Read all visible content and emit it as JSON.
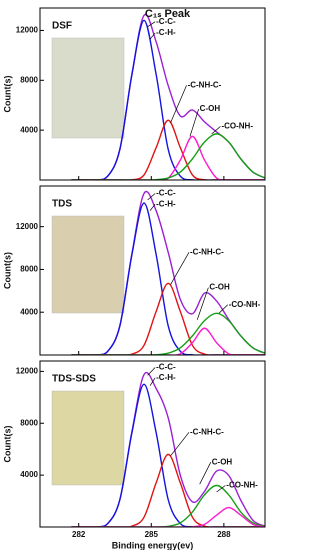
{
  "chart_data": [
    {
      "type": "line",
      "title": "C₁ₛ Peak",
      "label": "DSF",
      "image_color": "#d9dccb",
      "ylabel": "Count(s)",
      "x": [
        281.7,
        282.2,
        282.7,
        283.2,
        283.7,
        284.2,
        284.7,
        285.2,
        285.7,
        286.2,
        286.7,
        287.2,
        287.7,
        288.2,
        288.7,
        289.2,
        289.7
      ],
      "series": [
        {
          "color": "#9b1fd6",
          "values": [
            0,
            0,
            17,
            311,
            2450,
            8489,
            13207,
            11088,
            7567,
            5138,
            5619,
            4664,
            3854,
            3045,
            1695,
            637,
            163
          ]
        },
        {
          "color": "#1414e0",
          "values": [
            0,
            0,
            17,
            311,
            2450,
            8470,
            12800,
            8470,
            2450,
            311,
            17,
            0,
            0,
            0,
            0,
            0,
            0
          ]
        },
        {
          "color": "#e01414",
          "values": [
            0,
            0,
            0,
            0,
            0,
            19,
            407,
            2590,
            4800,
            2590,
            407,
            19,
            0,
            0,
            0,
            0,
            0
          ]
        },
        {
          "color": "#ff1ad0",
          "values": [
            0,
            0,
            0,
            0,
            0,
            0,
            0,
            0,
            154,
            1600,
            3500,
            1600,
            154,
            0,
            0,
            0,
            0
          ]
        },
        {
          "color": "#16a016",
          "values": [
            0,
            0,
            0,
            0,
            0,
            0,
            0,
            28,
            163,
            637,
            1695,
            3045,
            3700,
            3045,
            1695,
            637,
            163
          ]
        }
      ],
      "annotations": [
        "-C-C-",
        "-C-H-",
        "-C-NH-C-",
        "C-OH",
        "-CO-NH-"
      ],
      "xlim": [
        280.4,
        289.7
      ],
      "xticks": [
        282,
        285,
        288
      ],
      "ylim": [
        0,
        13800
      ],
      "yticks": [
        4000,
        8000,
        12000
      ]
    },
    {
      "type": "line",
      "label": "TDS",
      "image_color": "#d9cfae",
      "ylabel": "Count(s)",
      "x": [
        281.7,
        282.2,
        282.7,
        283.2,
        283.7,
        284.2,
        284.7,
        285.2,
        285.7,
        286.2,
        286.7,
        287.2,
        287.7,
        288.2,
        288.7,
        289.2,
        289.7
      ],
      "series": [
        {
          "color": "#9b1fd6",
          "values": [
            0,
            0,
            19,
            345,
            2718,
            9471,
            15107,
            13492,
            9590,
            5201,
            3857,
            5784,
            5045,
            3320,
            1786,
            671,
            172
          ]
        },
        {
          "color": "#1414e0",
          "values": [
            0,
            0,
            19,
            345,
            2718,
            9397,
            14200,
            9397,
            2718,
            345,
            19,
            0,
            0,
            0,
            0,
            0,
            0
          ]
        },
        {
          "color": "#e01414",
          "values": [
            0,
            0,
            0,
            0,
            0,
            74,
            907,
            4065,
            6700,
            4065,
            907,
            74,
            0,
            0,
            0,
            0,
            0
          ]
        },
        {
          "color": "#ff1ad0",
          "values": [
            0,
            0,
            0,
            0,
            0,
            0,
            0,
            0,
            0,
            110,
            1145,
            2500,
            1145,
            110,
            0,
            0,
            0
          ]
        },
        {
          "color": "#16a016",
          "values": [
            0,
            0,
            0,
            0,
            0,
            0,
            0,
            30,
            172,
            671,
            1786,
            3210,
            3900,
            3210,
            1786,
            671,
            172
          ]
        }
      ],
      "annotations": [
        "-C-C-",
        "-C-H-",
        "-C-NH-C-",
        "C-OH",
        "-CO-NH-"
      ],
      "xlim": [
        280.4,
        289.7
      ],
      "xticks": [
        282,
        285,
        288
      ],
      "ylim": [
        0,
        15800
      ],
      "yticks": [
        4000,
        8000,
        12000
      ]
    },
    {
      "type": "line",
      "label": "TDS-SDS",
      "image_color": "#dcd7a3",
      "ylabel": "Count(s)",
      "xlabel": "Binding energy(ev)",
      "x": [
        281.7,
        282.2,
        282.7,
        283.2,
        283.7,
        284.2,
        284.7,
        285.2,
        285.7,
        286.2,
        286.7,
        287.2,
        287.7,
        288.2,
        288.7,
        289.2,
        289.7
      ],
      "series": [
        {
          "color": "#9b1fd6",
          "values": [
            0,
            0,
            15,
            267,
            2101,
            7344,
            11756,
            10681,
            8410,
            3986,
            1941,
            2745,
            4314,
            3980,
            2064,
            523,
            71
          ]
        },
        {
          "color": "#1414e0",
          "values": [
            0,
            0,
            15,
            267,
            2101,
            7282,
            11000,
            7282,
            2101,
            267,
            15,
            0,
            0,
            0,
            0,
            0,
            0
          ]
        },
        {
          "color": "#e01414",
          "values": [
            0,
            0,
            0,
            0,
            0,
            62,
            756,
            3399,
            5600,
            3399,
            756,
            62,
            0,
            0,
            0,
            0,
            0
          ]
        },
        {
          "color": "#16a016",
          "values": [
            0,
            0,
            0,
            0,
            0,
            0,
            0,
            0,
            54,
            320,
            1153,
            2480,
            3200,
            2480,
            1153,
            320,
            54
          ]
        },
        {
          "color": "#ff1ad0",
          "values": [
            0,
            0,
            0,
            0,
            0,
            0,
            0,
            0,
            0,
            0,
            17,
            203,
            911,
            1500,
            911,
            203,
            17
          ]
        }
      ],
      "annotations": [
        "-C-C-",
        "-C-H-",
        "-C-NH-C-",
        "C-OH",
        "-CO-NH-"
      ],
      "xlim": [
        280.4,
        289.7
      ],
      "xticks": [
        282,
        285,
        288
      ],
      "ylim": [
        0,
        12800
      ],
      "yticks": [
        4000,
        8000,
        12000
      ]
    }
  ]
}
